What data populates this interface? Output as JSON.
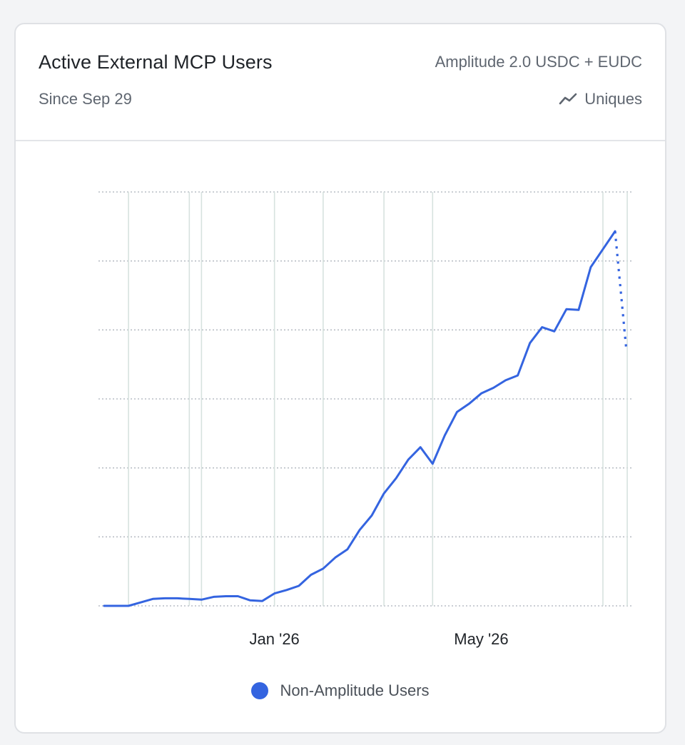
{
  "card": {
    "title": "Active External MCP Users",
    "subtitle": "Since Sep 29",
    "project": "Amplitude 2.0 USDC + EUDC",
    "metric_label": "Uniques",
    "metric_icon": "line-chart-icon"
  },
  "chart_data": {
    "type": "line",
    "x_tick_labels": [
      "Jan '26",
      "May '26"
    ],
    "y_tick_labels": [],
    "grid": true,
    "legend_position": "bottom-center",
    "ylim": [
      0,
      6
    ],
    "series": [
      {
        "name": "Non-Amplitude Users",
        "color": "#3464e0",
        "values": [
          0,
          0,
          0,
          0.05,
          0.1,
          0.11,
          0.11,
          0.1,
          0.09,
          0.13,
          0.14,
          0.14,
          0.08,
          0.07,
          0.18,
          0.23,
          0.29,
          0.45,
          0.54,
          0.7,
          0.82,
          1.1,
          1.31,
          1.63,
          1.85,
          2.12,
          2.3,
          2.06,
          2.47,
          2.81,
          2.93,
          3.08,
          3.16,
          3.27,
          3.34,
          3.81,
          4.04,
          3.98,
          4.3,
          4.29,
          4.91,
          5.17,
          5.43
        ],
        "incomplete_values": [
          5.43,
          3.69
        ]
      }
    ]
  },
  "legend": {
    "items": [
      {
        "label": "Non-Amplitude Users",
        "color": "#3464e0"
      }
    ]
  }
}
